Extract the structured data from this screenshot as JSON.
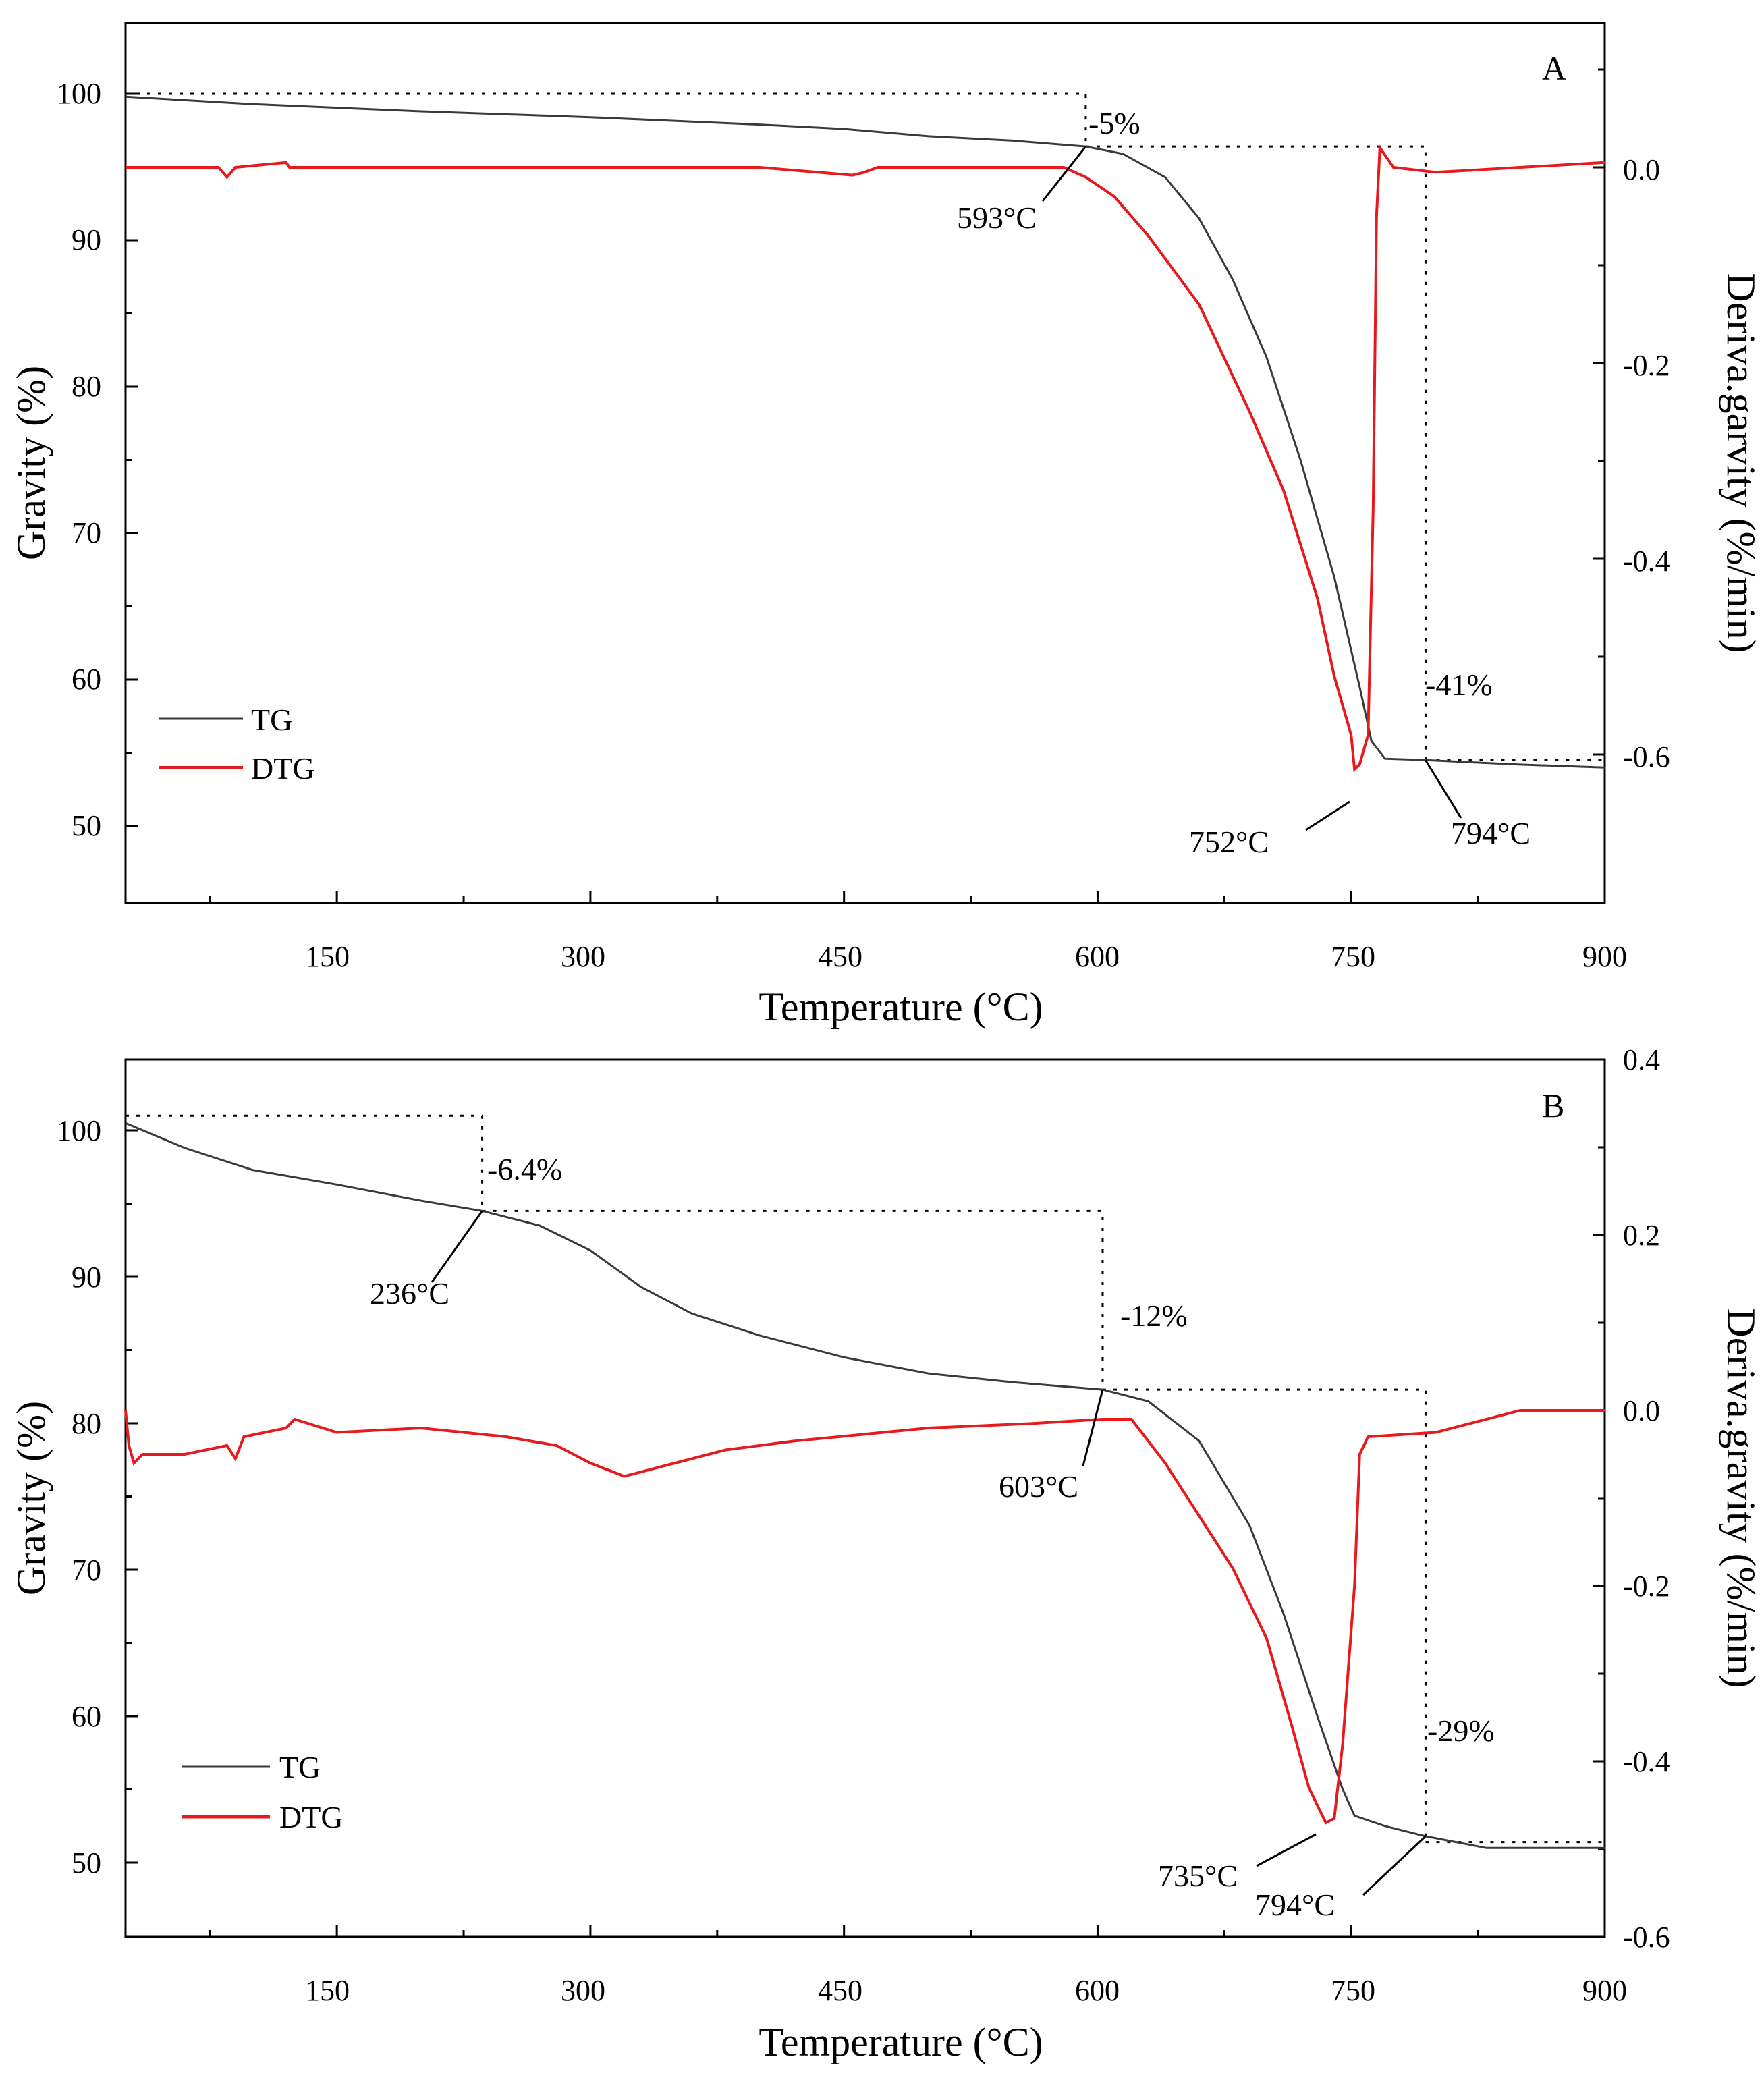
{
  "chart_data": [
    {
      "type": "line",
      "panel": "A",
      "xlabel": "Temperature (°C)",
      "ylabel_left": "Gravity (%)",
      "ylabel_right": "Deriva.garvity (%/min)",
      "xlim": [
        25,
        900
      ],
      "ylim_left": [
        45,
        105
      ],
      "ylim_right": [
        -0.76,
        0.14
      ],
      "xticks": [
        150,
        300,
        450,
        600,
        750,
        900
      ],
      "yticks_left": [
        50,
        60,
        70,
        80,
        90,
        100
      ],
      "yticks_right": [
        -0.6,
        -0.4,
        -0.2,
        0.0
      ],
      "ytick_labels_right": [
        "-0.6",
        "-0.4",
        "-0.2",
        "0.0"
      ],
      "legend": [
        "TG",
        "DTG"
      ],
      "series": [
        {
          "name": "TG",
          "axis": "left",
          "color": "#3a3a3a",
          "x": [
            25,
            100,
            200,
            300,
            400,
            450,
            500,
            550,
            593,
            615,
            640,
            660,
            680,
            700,
            720,
            740,
            755,
            762,
            770,
            794,
            850,
            900
          ],
          "y": [
            99.8,
            99.3,
            98.8,
            98.4,
            97.9,
            97.6,
            97.1,
            96.8,
            96.4,
            95.9,
            94.3,
            91.5,
            87.3,
            82.0,
            75.0,
            67.0,
            59.5,
            55.8,
            54.6,
            54.5,
            54.2,
            54.0
          ]
        },
        {
          "name": "DTG",
          "axis": "right",
          "color": "#e8191c",
          "x": [
            25,
            80,
            85,
            90,
            120,
            122,
            200,
            300,
            400,
            455,
            462,
            470,
            500,
            550,
            580,
            593,
            610,
            630,
            660,
            690,
            710,
            730,
            740,
            750,
            752,
            755,
            760,
            763,
            765,
            767,
            775,
            800,
            850,
            900
          ],
          "y": [
            0.0,
            0.0,
            -0.01,
            0.0,
            0.005,
            0.0,
            0.0,
            0.0,
            0.0,
            -0.008,
            -0.005,
            0.0,
            0.0,
            0.0,
            0.0,
            -0.01,
            -0.03,
            -0.07,
            -0.14,
            -0.25,
            -0.33,
            -0.44,
            -0.52,
            -0.58,
            -0.615,
            -0.61,
            -0.58,
            -0.35,
            -0.05,
            0.02,
            0.0,
            -0.005,
            0.0,
            0.005
          ]
        }
      ],
      "annotations": [
        {
          "text": "-5%",
          "x": 600,
          "y": 96.4
        },
        {
          "text": "593°C",
          "x": 593,
          "y": 96.4
        },
        {
          "text": "-41%",
          "x": 794,
          "y": 60
        },
        {
          "text": "752°C",
          "x": 752,
          "y": 52
        },
        {
          "text": "794°C",
          "x": 794,
          "y": 54.5
        }
      ]
    },
    {
      "type": "line",
      "panel": "B",
      "xlabel": "Temperature (°C)",
      "ylabel_left": "Gravity (%)",
      "ylabel_right": "Deriva.gravity (%/min)",
      "xlim": [
        25,
        900
      ],
      "ylim_left": [
        45,
        105
      ],
      "ylim_right": [
        -0.6,
        0.4
      ],
      "xticks": [
        150,
        300,
        450,
        600,
        750,
        900
      ],
      "yticks_left": [
        50,
        60,
        70,
        80,
        90,
        100
      ],
      "yticks_right": [
        -0.6,
        -0.4,
        -0.2,
        0.0,
        0.2,
        0.4
      ],
      "ytick_labels_right": [
        "-0.6",
        "-0.4",
        "-0.2",
        "0.0",
        "0.2",
        "0.4"
      ],
      "legend": [
        "TG",
        "DTG"
      ],
      "series": [
        {
          "name": "TG",
          "axis": "left",
          "color": "#3a3a3a",
          "x": [
            25,
            60,
            100,
            150,
            200,
            236,
            270,
            300,
            330,
            360,
            400,
            450,
            500,
            550,
            603,
            630,
            660,
            690,
            710,
            730,
            745,
            752,
            770,
            794,
            830,
            900
          ],
          "y": [
            100.5,
            98.8,
            97.3,
            96.3,
            95.2,
            94.5,
            93.5,
            91.8,
            89.3,
            87.5,
            86.0,
            84.5,
            83.4,
            82.8,
            82.3,
            81.5,
            78.8,
            73.0,
            67.0,
            60.0,
            55.0,
            53.2,
            52.5,
            51.8,
            51.0,
            51.0
          ]
        },
        {
          "name": "DTG",
          "axis": "right",
          "color": "#e8191c",
          "x": [
            25,
            27,
            30,
            35,
            60,
            85,
            90,
            95,
            120,
            125,
            150,
            200,
            250,
            280,
            300,
            320,
            340,
            380,
            420,
            500,
            560,
            603,
            620,
            640,
            660,
            680,
            700,
            715,
            725,
            735,
            740,
            745,
            752,
            755,
            760,
            800,
            850,
            900
          ],
          "y": [
            0.0,
            -0.04,
            -0.06,
            -0.05,
            -0.05,
            -0.04,
            -0.055,
            -0.03,
            -0.02,
            -0.01,
            -0.025,
            -0.02,
            -0.03,
            -0.04,
            -0.06,
            -0.075,
            -0.065,
            -0.045,
            -0.035,
            -0.02,
            -0.015,
            -0.01,
            -0.01,
            -0.06,
            -0.12,
            -0.18,
            -0.26,
            -0.36,
            -0.43,
            -0.47,
            -0.465,
            -0.38,
            -0.2,
            -0.05,
            -0.03,
            -0.025,
            0.0,
            0.0
          ]
        }
      ],
      "annotations": [
        {
          "text": "-6.4%",
          "x": 236,
          "y": 98
        },
        {
          "text": "236°C",
          "x": 236,
          "y": 94.5
        },
        {
          "text": "-12%",
          "x": 603,
          "y": 88
        },
        {
          "text": "603°C",
          "x": 603,
          "y": 82.3
        },
        {
          "text": "-29%",
          "x": 794,
          "y": 60
        },
        {
          "text": "735°C",
          "x": 735,
          "y": 52
        },
        {
          "text": "794°C",
          "x": 794,
          "y": 51.8
        }
      ]
    }
  ]
}
